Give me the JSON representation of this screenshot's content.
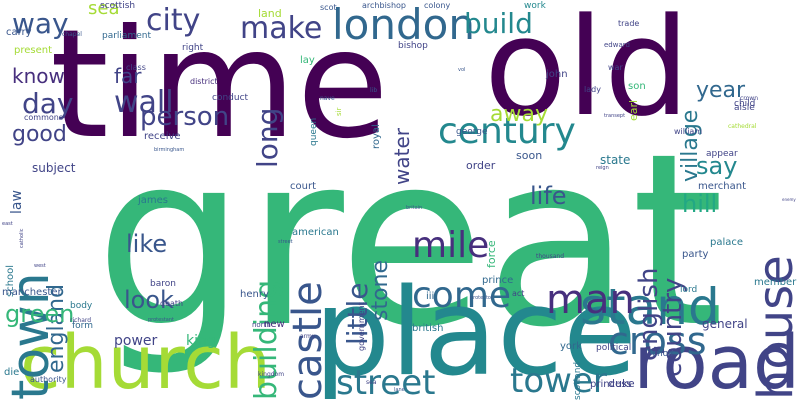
{
  "title": "word cloud",
  "colors": {
    "background": "#ffffff",
    "palette": [
      "#440154",
      "#481a6c",
      "#472f7d",
      "#414487",
      "#39568c",
      "#31688e",
      "#2a788e",
      "#23888e",
      "#1f988b",
      "#22a884",
      "#35b779",
      "#54c568",
      "#7ad151",
      "#a5db36",
      "#d2e21b",
      "#fde725"
    ]
  },
  "words": [
    "great",
    "time",
    "old",
    "place",
    "church",
    "town",
    "road",
    "london",
    "stand",
    "house",
    "castle",
    "mile",
    "cross",
    "man",
    "street",
    "tower",
    "come",
    "century",
    "build",
    "city",
    "wall",
    "building",
    "make",
    "person",
    "day",
    "way",
    "little",
    "english",
    "country",
    "england",
    "stone",
    "green",
    "life",
    "look",
    "like",
    "hill",
    "long",
    "good",
    "know",
    "village",
    "water",
    "far",
    "year",
    "say",
    "away",
    "sea",
    "power",
    "king",
    "general",
    "american",
    "court",
    "state",
    "soon",
    "order",
    "subject",
    "law",
    "school",
    "manchester",
    "body",
    "form",
    "scottish",
    "parliament",
    "present",
    "carry",
    "chapel",
    "right",
    "class",
    "conduct",
    "district",
    "receive",
    "land",
    "scot",
    "archbishop",
    "colony",
    "bishop",
    "lay",
    "queen",
    "nave",
    "royal",
    "sir",
    "lib",
    "work",
    "trade",
    "edward",
    "earl",
    "war",
    "son",
    "lady",
    "john",
    "child",
    "aisle",
    "crown",
    "william",
    "cathedral",
    "appear",
    "merchant",
    "enemy",
    "palace",
    "party",
    "lord",
    "member",
    "thousand",
    "prince",
    "act",
    "government",
    "iii",
    "british",
    "york",
    "political",
    "princess",
    "duke",
    "choir",
    "scotland",
    "kingdom",
    "authority",
    "die",
    "army",
    "north",
    "henry",
    "baron",
    "death",
    "james",
    "force",
    "george",
    "east",
    "west",
    "richard",
    "new",
    "reign",
    "birmingham",
    "transept",
    "vol",
    "street",
    "commons",
    "britain",
    "protestant",
    "catholic",
    "protector",
    "sea",
    "lane"
  ]
}
